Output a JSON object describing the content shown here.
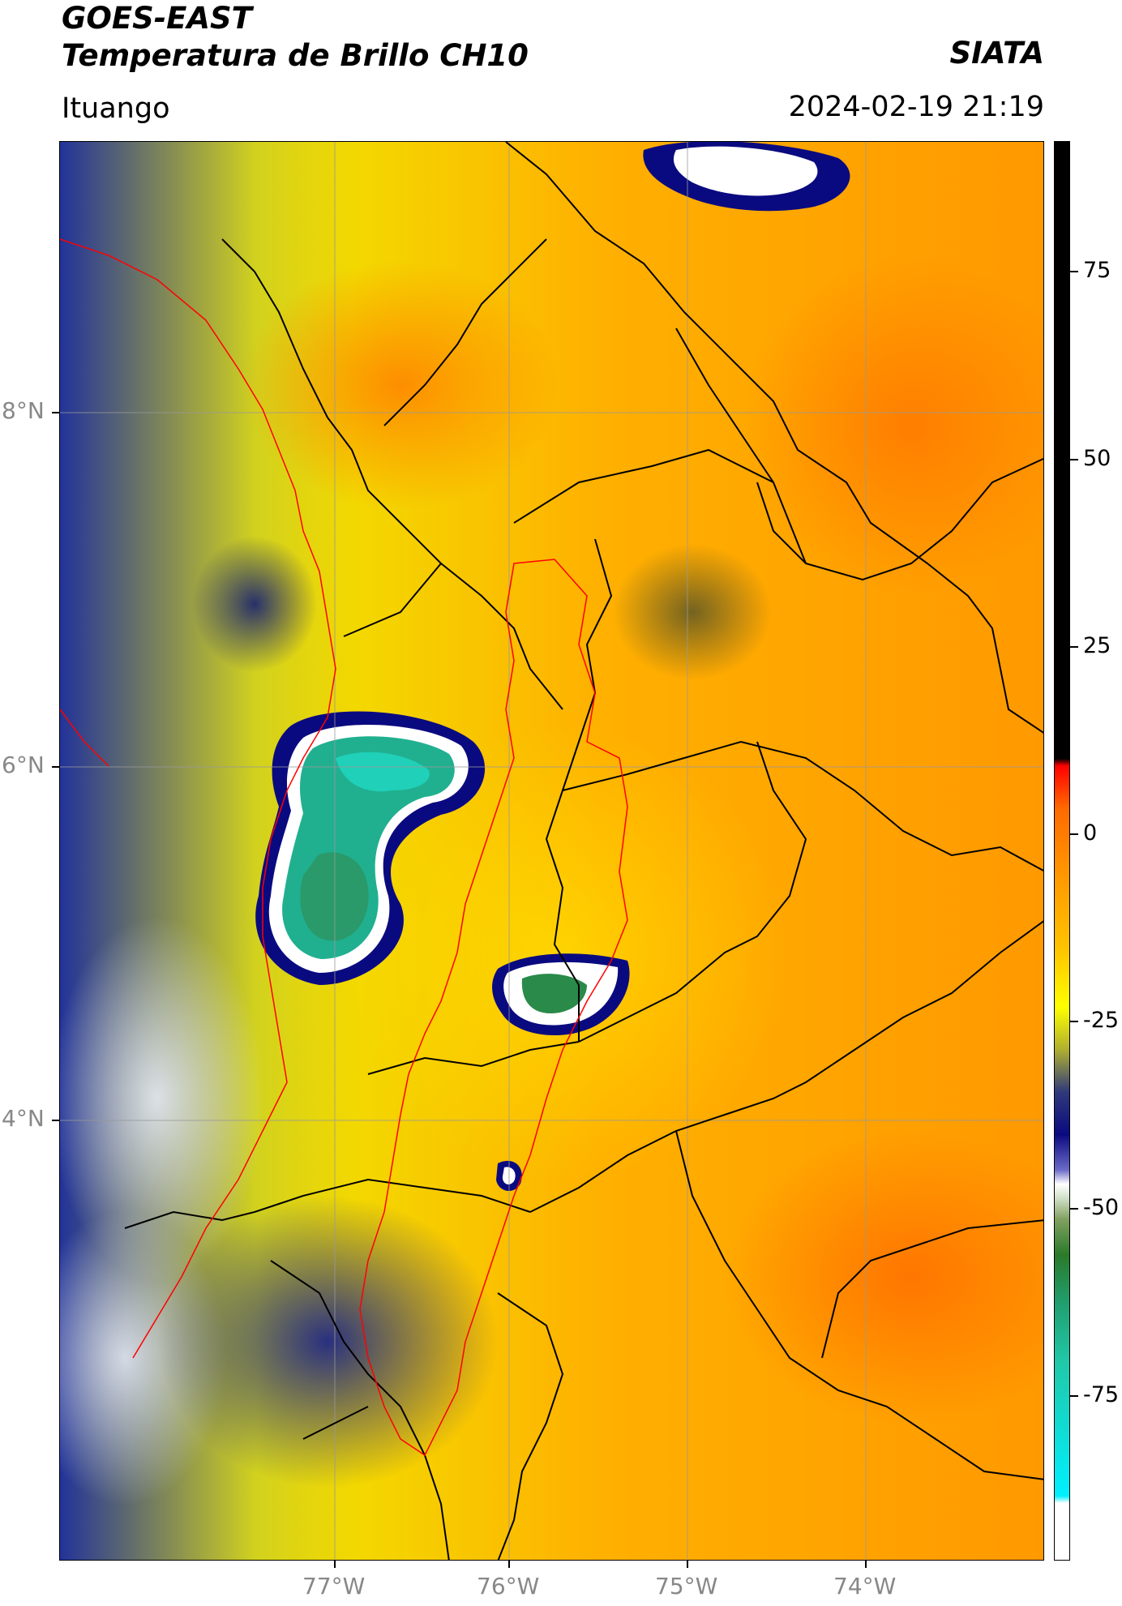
{
  "header": {
    "title_line1": "GOES-EAST",
    "title_line2": "Temperatura de Brillo CH10",
    "organization": "SIATA",
    "location": "Ituango",
    "timestamp": "2024-02-19 21:19"
  },
  "map": {
    "latitude_labels": [
      "8°N",
      "6°N",
      "4°N"
    ],
    "longitude_labels": [
      "77°W",
      "76°W",
      "75°W",
      "74°W"
    ],
    "gridlines": true
  },
  "colorbar": {
    "tick_labels": [
      "75",
      "50",
      "25",
      "0",
      "-25",
      "-50",
      "-75"
    ],
    "range": [
      -95,
      90
    ],
    "colors": {
      "warm_top": "#000000",
      "hot": "#ff0000",
      "orange": "#ff9a00",
      "yellow": "#ffff00",
      "dark_blue": "#0a0a80",
      "white": "#ffffff",
      "green": "#2a7a2a",
      "teal": "#20c8a8",
      "cyan": "#00f0ff"
    }
  },
  "colors": {
    "department_borders": "#000000",
    "highlight_region_border": "#ff0000",
    "gridline": "#999999"
  }
}
